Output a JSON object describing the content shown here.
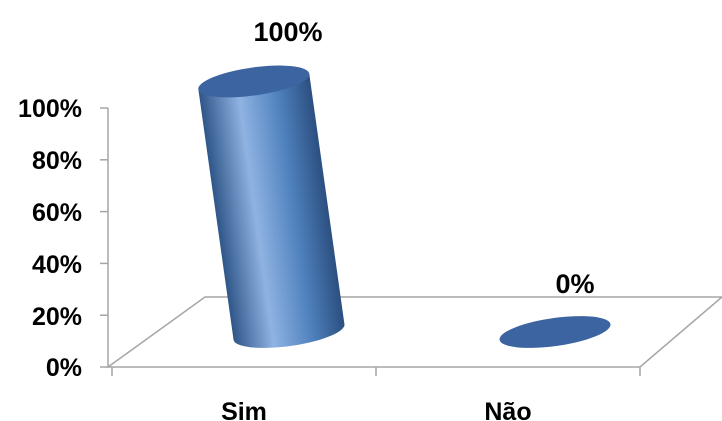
{
  "chart_data": {
    "type": "bar",
    "style": "3d-cylinder",
    "categories": [
      "Sim",
      "Não"
    ],
    "values": [
      100,
      0
    ],
    "value_labels": [
      "100%",
      "0%"
    ],
    "y_ticks": [
      "0%",
      "20%",
      "40%",
      "60%",
      "80%",
      "100%"
    ],
    "ylim": [
      0,
      100
    ],
    "title": "",
    "xlabel": "",
    "ylabel": "",
    "grid": false,
    "legend": "none",
    "colors": {
      "bar": "#4f81bd",
      "bar_dark": "#2f5688",
      "bar_light": "#8fb3e3",
      "bar_top": "#3b64a0",
      "axis": "#a6a6a6"
    }
  }
}
